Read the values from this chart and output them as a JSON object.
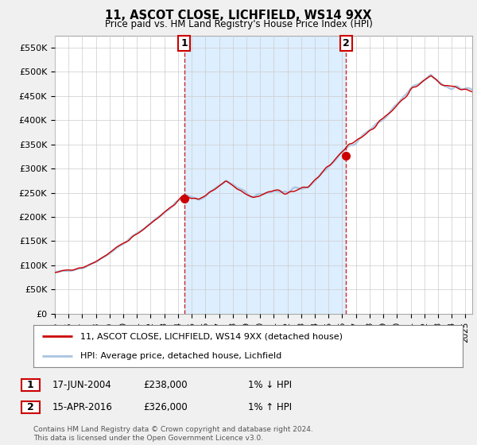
{
  "title": "11, ASCOT CLOSE, LICHFIELD, WS14 9XX",
  "subtitle": "Price paid vs. HM Land Registry's House Price Index (HPI)",
  "ylim": [
    0,
    575000
  ],
  "yticks": [
    0,
    50000,
    100000,
    150000,
    200000,
    250000,
    300000,
    350000,
    400000,
    450000,
    500000,
    550000
  ],
  "ytick_labels": [
    "£0",
    "£50K",
    "£100K",
    "£150K",
    "£200K",
    "£250K",
    "£300K",
    "£350K",
    "£400K",
    "£450K",
    "£500K",
    "£550K"
  ],
  "hpi_color": "#a8c4e0",
  "price_color": "#cc0000",
  "shade_color": "#ddeeff",
  "marker1_date": 2004.46,
  "marker1_price": 238000,
  "marker2_date": 2016.29,
  "marker2_price": 326000,
  "marker1_date_str": "17-JUN-2004",
  "marker1_price_str": "£238,000",
  "marker1_hpi_str": "1% ↓ HPI",
  "marker2_date_str": "15-APR-2016",
  "marker2_price_str": "£326,000",
  "marker2_hpi_str": "1% ↑ HPI",
  "legend_line1": "11, ASCOT CLOSE, LICHFIELD, WS14 9XX (detached house)",
  "legend_line2": "HPI: Average price, detached house, Lichfield",
  "footer": "Contains HM Land Registry data © Crown copyright and database right 2024.\nThis data is licensed under the Open Government Licence v3.0.",
  "background_color": "#f0f0f0",
  "plot_bg_color": "#ffffff",
  "grid_color": "#cccccc",
  "xmin": 1995,
  "xmax": 2025.5
}
